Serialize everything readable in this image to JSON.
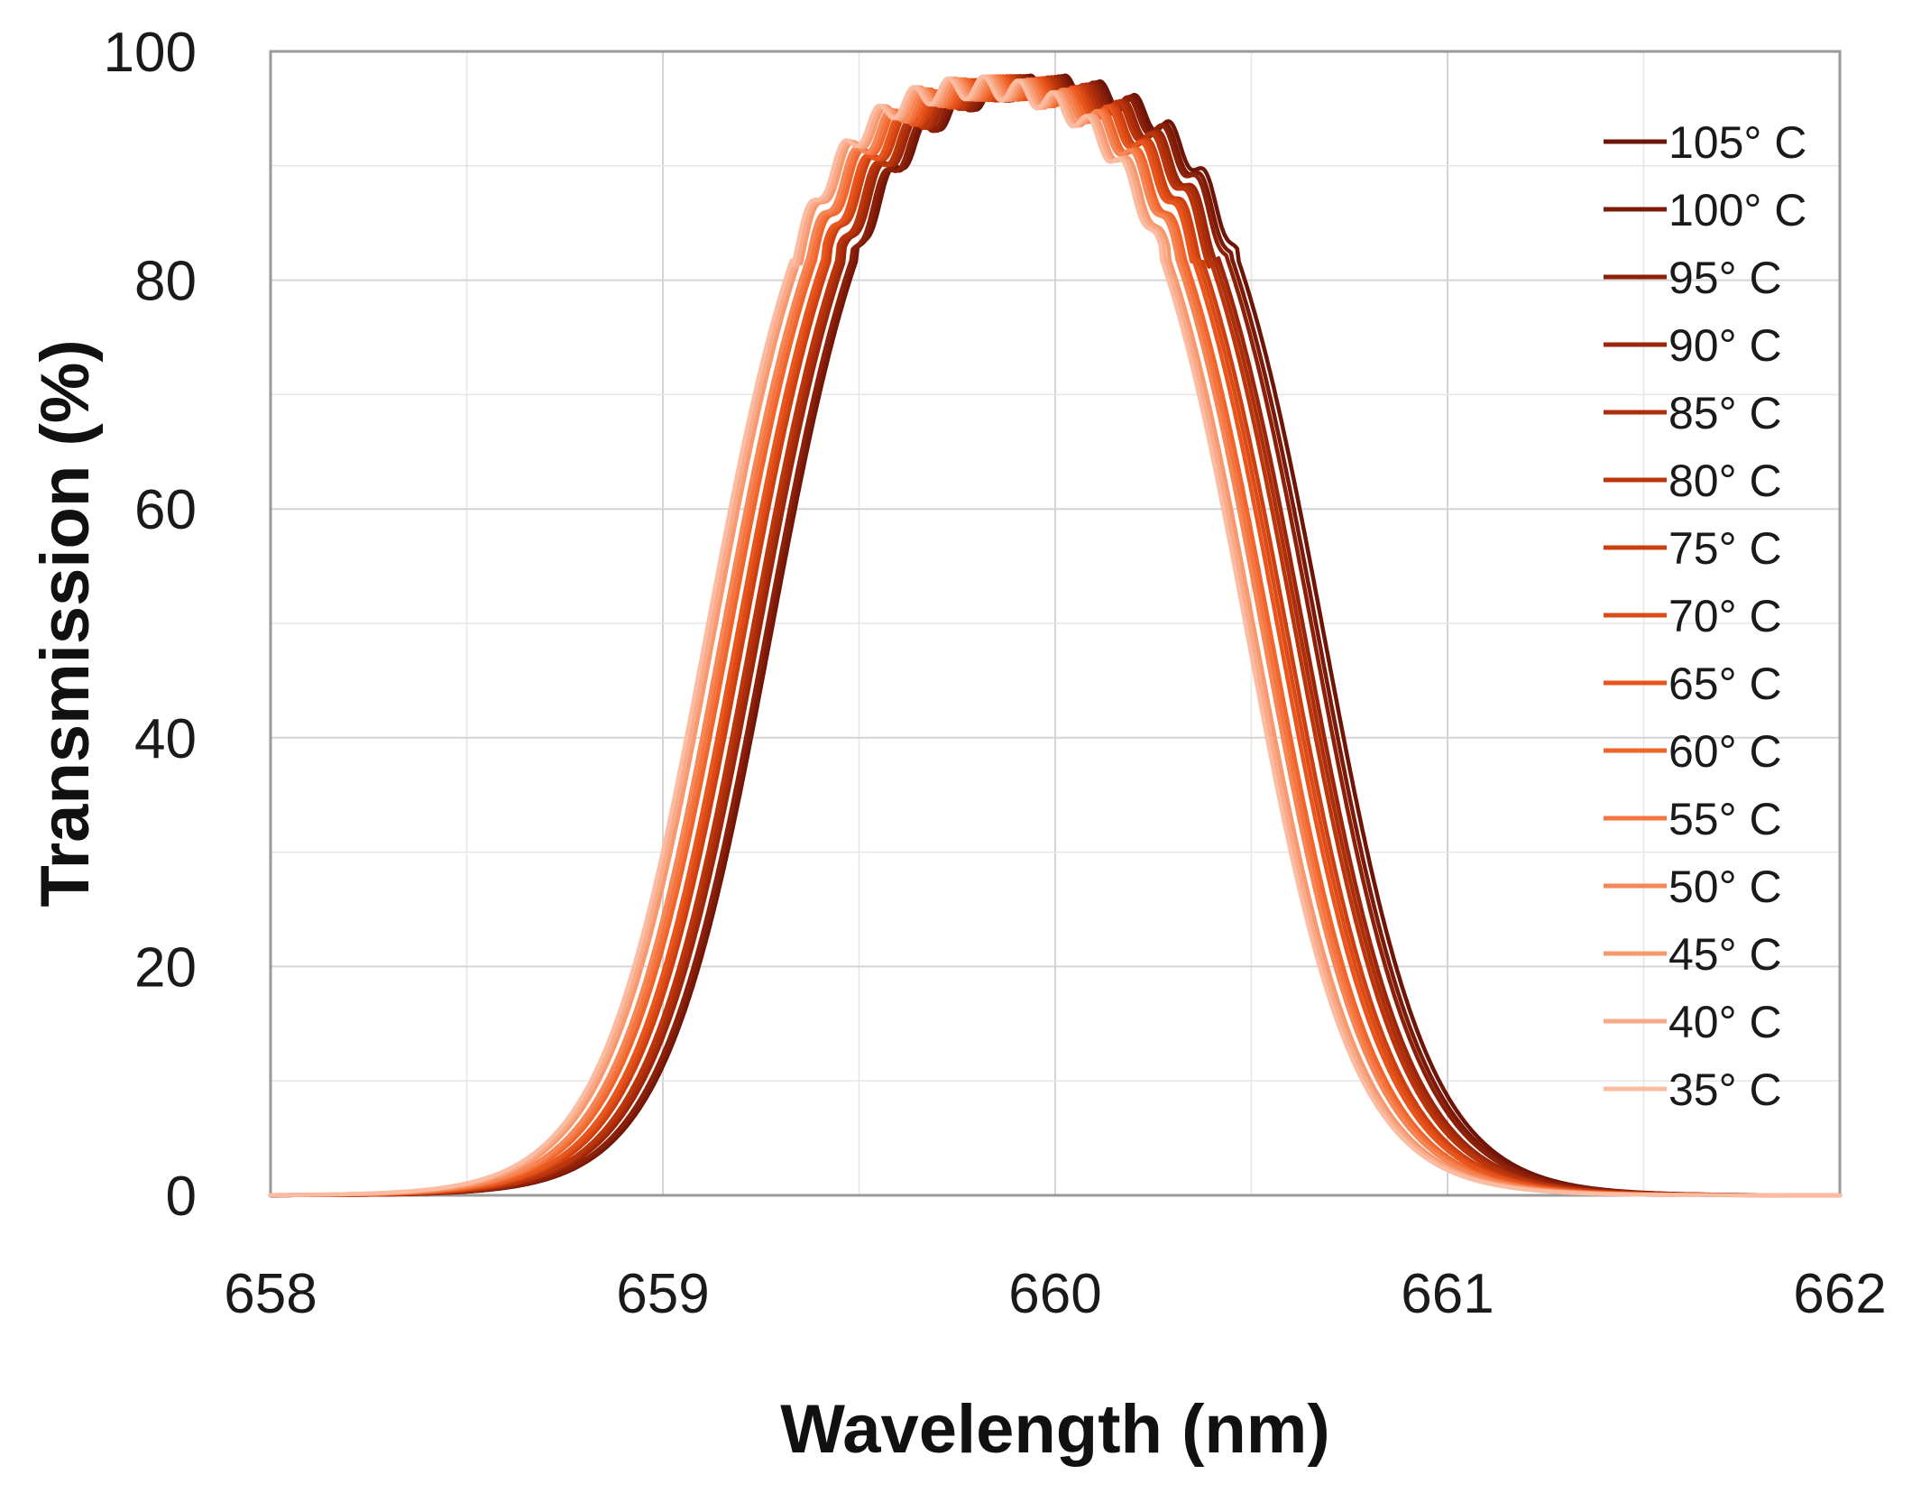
{
  "chart_data": {
    "type": "line",
    "title": "",
    "xlabel": "Wavelength (nm)",
    "ylabel": "Transmission (%)",
    "xlim": [
      658,
      662
    ],
    "ylim": [
      0,
      100
    ],
    "x_ticks": [
      658,
      659,
      660,
      661,
      662
    ],
    "y_ticks": [
      0,
      20,
      40,
      60,
      80,
      100
    ],
    "x_ticks_text": [
      "658",
      "659",
      "660",
      "661",
      "662"
    ],
    "y_ticks_text": [
      "0",
      "20",
      "40",
      "60",
      "80",
      "100"
    ],
    "grid": true,
    "legend_position": "right",
    "series": [
      {
        "name": "105° C",
        "temperature": 105,
        "color": "#6e1508",
        "center": 659.98,
        "half_width": 0.705,
        "peak": 98
      },
      {
        "name": "100° C",
        "temperature": 100,
        "color": "#7c1a0a",
        "center": 659.97,
        "half_width": 0.7,
        "peak": 98
      },
      {
        "name": "95° C",
        "temperature": 95,
        "color": "#8c2009",
        "center": 659.96,
        "half_width": 0.698,
        "peak": 98
      },
      {
        "name": "90° C",
        "temperature": 90,
        "color": "#9c2609",
        "center": 659.94,
        "half_width": 0.696,
        "peak": 98
      },
      {
        "name": "85° C",
        "temperature": 85,
        "color": "#ac2e0a",
        "center": 659.93,
        "half_width": 0.695,
        "peak": 98
      },
      {
        "name": "80° C",
        "temperature": 80,
        "color": "#bc360c",
        "center": 659.92,
        "half_width": 0.694,
        "peak": 98
      },
      {
        "name": "75° C",
        "temperature": 75,
        "color": "#cc3f10",
        "center": 659.9,
        "half_width": 0.693,
        "peak": 98
      },
      {
        "name": "70° C",
        "temperature": 70,
        "color": "#dc4a16",
        "center": 659.89,
        "half_width": 0.692,
        "peak": 98
      },
      {
        "name": "65° C",
        "temperature": 65,
        "color": "#e8561e",
        "center": 659.88,
        "half_width": 0.691,
        "peak": 98
      },
      {
        "name": "60° C",
        "temperature": 60,
        "color": "#f0652c",
        "center": 659.86,
        "half_width": 0.69,
        "peak": 98
      },
      {
        "name": "55° C",
        "temperature": 55,
        "color": "#f4753f",
        "center": 659.85,
        "half_width": 0.69,
        "peak": 98
      },
      {
        "name": "50° C",
        "temperature": 50,
        "color": "#f68656",
        "center": 659.84,
        "half_width": 0.69,
        "peak": 98
      },
      {
        "name": "45° C",
        "temperature": 45,
        "color": "#f8986e",
        "center": 659.82,
        "half_width": 0.69,
        "peak": 98
      },
      {
        "name": "40° C",
        "temperature": 40,
        "color": "#f9aa88",
        "center": 659.81,
        "half_width": 0.69,
        "peak": 98
      },
      {
        "name": "35° C",
        "temperature": 35,
        "color": "#fbbca2",
        "center": 659.8,
        "half_width": 0.69,
        "peak": 98
      }
    ]
  }
}
